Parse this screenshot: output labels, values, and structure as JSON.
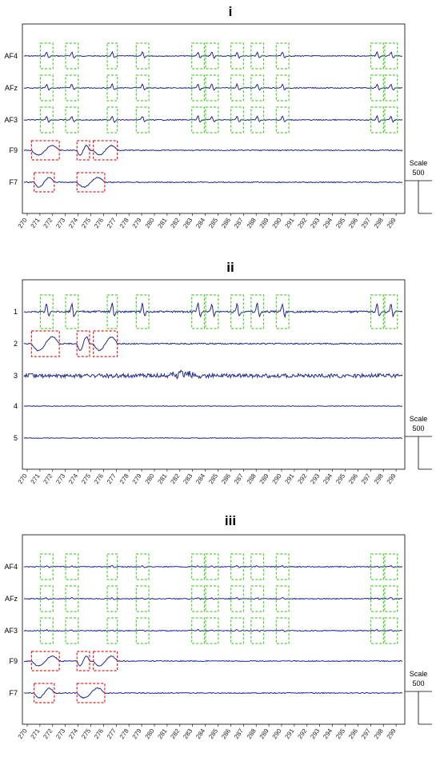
{
  "colors": {
    "trace": "#1f2a8a",
    "normal_box": "#55cc33",
    "artifact_box": "#e02020",
    "axis": "#000000"
  },
  "chart_data": [
    {
      "type": "line",
      "title": "i",
      "channels": [
        "AF4",
        "AFz",
        "AF3",
        "F9",
        "F7"
      ],
      "x_ticks": [
        "270",
        "271",
        "272",
        "273",
        "274",
        "275",
        "276",
        "277",
        "278",
        "279",
        "280",
        "281",
        "282",
        "283",
        "284",
        "285",
        "286",
        "287",
        "288",
        "289",
        "290",
        "291",
        "292",
        "293",
        "294",
        "295",
        "296",
        "297",
        "298",
        "299"
      ],
      "scale_label": "Scale",
      "scale_value": "500",
      "green_boxes_x": [
        [
          271.3,
          272.3
        ],
        [
          273.3,
          274.3
        ],
        [
          276.6,
          277.4
        ],
        [
          278.9,
          279.9
        ],
        [
          283.3,
          284.3
        ],
        [
          284.4,
          285.4
        ],
        [
          286.4,
          287.4
        ],
        [
          288.0,
          289.0
        ],
        [
          290.0,
          291.0
        ],
        [
          297.5,
          298.5
        ],
        [
          298.6,
          299.6
        ]
      ],
      "red_boxes": [
        {
          "channel": "F9",
          "x": [
            270.6,
            272.8
          ]
        },
        {
          "channel": "F9",
          "x": [
            274.2,
            275.2
          ]
        },
        {
          "channel": "F9",
          "x": [
            275.5,
            277.4
          ]
        },
        {
          "channel": "F7",
          "x": [
            270.8,
            272.4
          ]
        },
        {
          "channel": "F7",
          "x": [
            274.2,
            276.4
          ]
        }
      ]
    },
    {
      "type": "line",
      "title": "ii",
      "channels": [
        "1",
        "2",
        "3",
        "4",
        "5"
      ],
      "x_ticks": [
        "270",
        "271",
        "272",
        "273",
        "274",
        "275",
        "276",
        "277",
        "278",
        "279",
        "280",
        "281",
        "282",
        "283",
        "284",
        "285",
        "286",
        "287",
        "288",
        "289",
        "290",
        "291",
        "292",
        "293",
        "294",
        "295",
        "296",
        "297",
        "298",
        "299"
      ],
      "scale_label": "Scale",
      "scale_value": "500",
      "green_boxes_x": [
        [
          271.3,
          272.3
        ],
        [
          273.3,
          274.3
        ],
        [
          276.6,
          277.4
        ],
        [
          278.9,
          279.9
        ],
        [
          283.3,
          284.3
        ],
        [
          284.4,
          285.4
        ],
        [
          286.4,
          287.4
        ],
        [
          288.0,
          289.0
        ],
        [
          290.0,
          291.0
        ],
        [
          297.5,
          298.5
        ],
        [
          298.6,
          299.6
        ]
      ],
      "red_boxes": [
        {
          "channel": "2",
          "x": [
            270.6,
            272.8
          ]
        },
        {
          "channel": "2",
          "x": [
            274.2,
            275.2
          ]
        },
        {
          "channel": "2",
          "x": [
            275.5,
            277.4
          ]
        }
      ]
    },
    {
      "type": "line",
      "title": "iii",
      "channels": [
        "AF4",
        "AFz",
        "AF3",
        "F9",
        "F7"
      ],
      "x_ticks": [
        "270",
        "271",
        "272",
        "273",
        "274",
        "275",
        "276",
        "277",
        "278",
        "279",
        "280",
        "281",
        "282",
        "283",
        "284",
        "285",
        "286",
        "287",
        "288",
        "289",
        "290",
        "291",
        "292",
        "293",
        "294",
        "295",
        "296",
        "297",
        "298",
        "299"
      ],
      "scale_label": "Scale",
      "scale_value": "500",
      "green_boxes_x": [
        [
          271.3,
          272.3
        ],
        [
          273.3,
          274.3
        ],
        [
          276.6,
          277.4
        ],
        [
          278.9,
          279.9
        ],
        [
          283.3,
          284.3
        ],
        [
          284.4,
          285.4
        ],
        [
          286.4,
          287.4
        ],
        [
          288.0,
          289.0
        ],
        [
          290.0,
          291.0
        ],
        [
          297.5,
          298.5
        ],
        [
          298.6,
          299.6
        ]
      ],
      "red_boxes": [
        {
          "channel": "F9",
          "x": [
            270.6,
            272.8
          ]
        },
        {
          "channel": "F9",
          "x": [
            274.2,
            275.2
          ]
        },
        {
          "channel": "F9",
          "x": [
            275.5,
            277.4
          ]
        },
        {
          "channel": "F7",
          "x": [
            270.8,
            272.4
          ]
        },
        {
          "channel": "F7",
          "x": [
            274.2,
            276.4
          ]
        }
      ]
    }
  ]
}
